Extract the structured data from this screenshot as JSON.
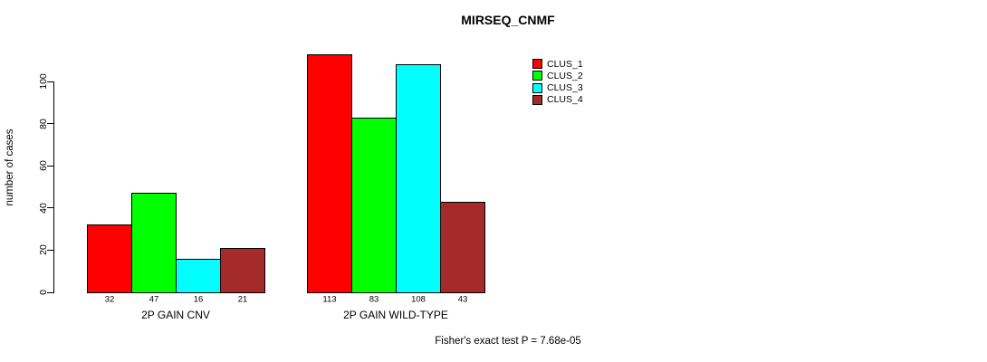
{
  "chart_data": {
    "type": "bar",
    "title": "MIRSEQ_CNMF",
    "ylabel": "number of cases",
    "xlabel": "",
    "categories": [
      "2P GAIN CNV",
      "2P GAIN WILD-TYPE"
    ],
    "series": [
      {
        "name": "CLUS_1",
        "color": "#ff0000",
        "values": [
          32,
          113
        ]
      },
      {
        "name": "CLUS_2",
        "color": "#00ff00",
        "values": [
          47,
          83
        ]
      },
      {
        "name": "CLUS_3",
        "color": "#00ffff",
        "values": [
          16,
          108
        ]
      },
      {
        "name": "CLUS_4",
        "color": "#a52a2a",
        "values": [
          21,
          43
        ]
      }
    ],
    "yticks": [
      0,
      20,
      40,
      60,
      80,
      100
    ],
    "ylim": [
      0,
      117
    ],
    "grid": false,
    "legend_position": "top-right",
    "bar_value_labels": true,
    "annotation": "Fisher's exact test P = 7.68e-05"
  }
}
